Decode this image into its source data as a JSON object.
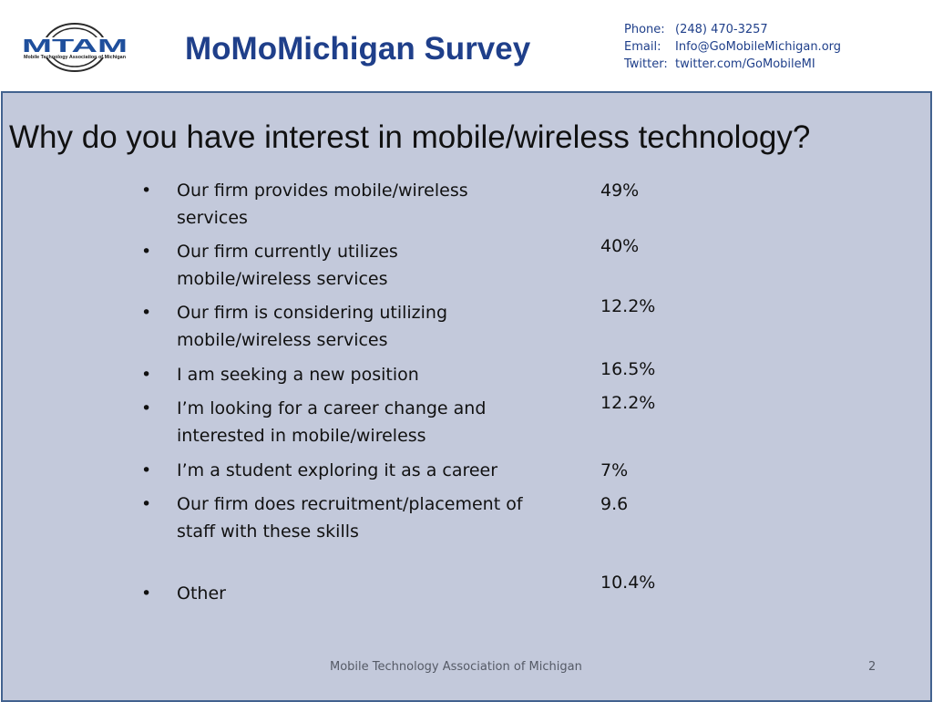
{
  "header": {
    "logo_text": "MTAM",
    "logo_subtext": "Mobile Technology Association of Michigan",
    "title": "MoMoMichigan Survey",
    "contact": [
      {
        "label": "Phone:",
        "value": "(248) 470-3257"
      },
      {
        "label": "Email:",
        "value": "Info@GoMobileMichigan.org"
      },
      {
        "label": "Twitter:",
        "value": "twitter.com/GoMobileMI"
      }
    ]
  },
  "slide": {
    "question": "Why do you have interest in mobile/wireless technology?",
    "responses": [
      {
        "text": "Our firm provides mobile/wireless services",
        "value": "49%"
      },
      {
        "text": "Our firm currently utilizes mobile/wireless services",
        "value": "40%"
      },
      {
        "text": "Our firm is considering utilizing mobile/wireless services",
        "value": "12.2%"
      },
      {
        "text": "I am seeking a new position",
        "value": "16.5%"
      },
      {
        "text": "I’m looking for a career change and interested in mobile/wireless",
        "value": "12.2%"
      },
      {
        "text": "I’m a student exploring it as a career",
        "value": "7%"
      },
      {
        "text": "Our firm does recruitment/placement of staff with these skills",
        "value": "9.6"
      },
      {
        "text": "Other",
        "value": "10.4%"
      }
    ],
    "bullet": "•"
  },
  "footer": {
    "text": "Mobile Technology Association of Michigan",
    "page_number": "2"
  },
  "colors": {
    "title_blue": "#1f3f8a",
    "panel_bg": "#c3c9db",
    "panel_border": "#42628f",
    "logo_blue": "#1f4f9c"
  }
}
